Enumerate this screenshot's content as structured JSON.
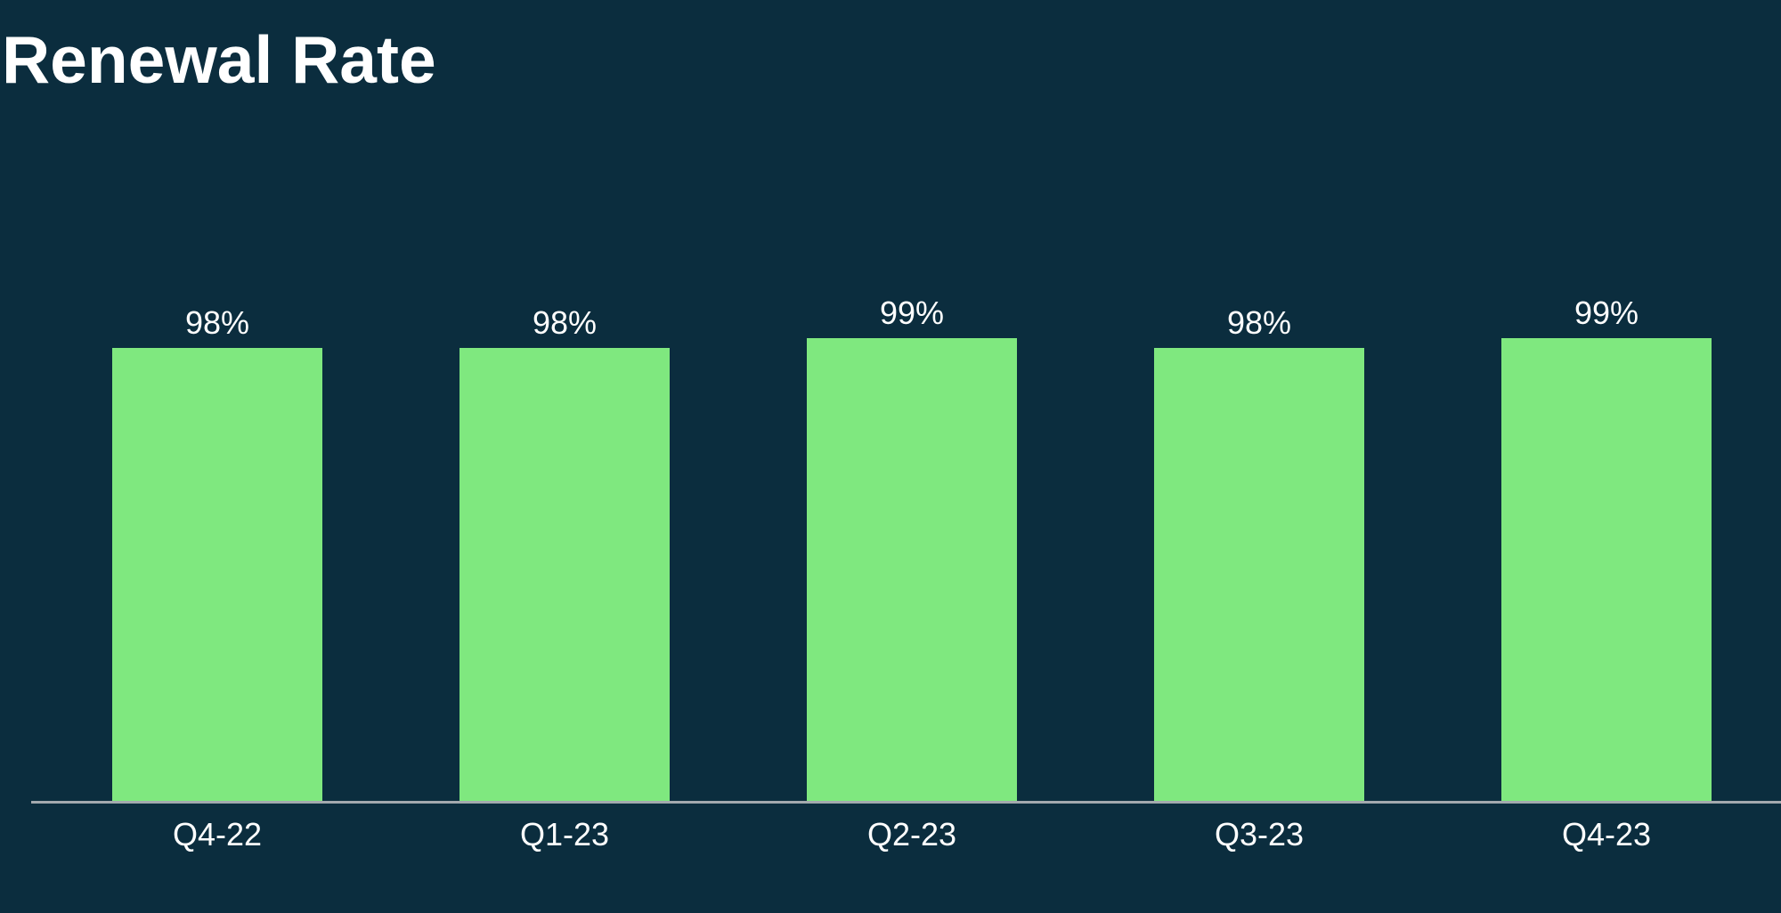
{
  "slide": {
    "background_color": "#0B2D3E",
    "title": "Renewal Rate",
    "title_color": "#FFFFFF"
  },
  "chart_data": {
    "type": "bar",
    "title": "Renewal Rate",
    "categories": [
      "Q4-22",
      "Q1-23",
      "Q2-23",
      "Q3-23",
      "Q4-23"
    ],
    "values": [
      98,
      98,
      99,
      98,
      99
    ],
    "value_labels": [
      "98%",
      "98%",
      "99%",
      "98%",
      "99%"
    ],
    "unit": "%",
    "ylim": [
      80,
      100
    ],
    "xlabel": "",
    "ylabel": "",
    "grid": false,
    "legend": false,
    "y_axis_visible": false,
    "bar_color": "#7FE87F",
    "value_label_color": "#FFFFFF",
    "category_label_color": "#FFFFFF",
    "axis_line_color": "#A3A9AE"
  }
}
